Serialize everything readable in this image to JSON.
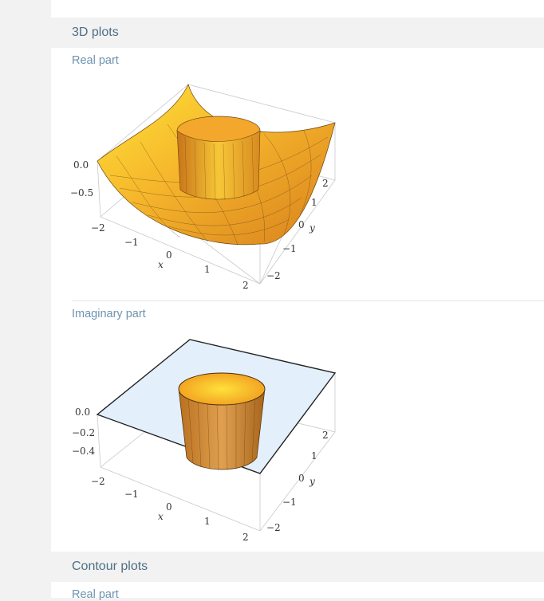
{
  "sections": {
    "plots3d": {
      "title": "3D plots"
    },
    "contour": {
      "title": "Contour plots"
    }
  },
  "plots": {
    "real": {
      "label": "Real part",
      "z_ticks": [
        "0.0",
        "−0.5"
      ],
      "x_ticks": [
        "−2",
        "−1",
        "0",
        "1",
        "2"
      ],
      "y_ticks": [
        "2",
        "1",
        "0",
        "−1",
        "−2"
      ],
      "x_axis": "x",
      "y_axis": "y"
    },
    "imag": {
      "label": "Imaginary part",
      "z_ticks": [
        "0.0",
        "−0.2",
        "−0.4"
      ],
      "x_ticks": [
        "−2",
        "−1",
        "0",
        "1",
        "2"
      ],
      "y_ticks": [
        "2",
        "1",
        "0",
        "−1",
        "−2"
      ],
      "x_axis": "x",
      "y_axis": "y"
    },
    "contour_real": {
      "label": "Real part"
    }
  },
  "colors": {
    "surface_orange": "#f2a12a",
    "surface_yellow": "#ffe437",
    "plane_blue": "#e3f0fb",
    "section_text": "#4f6f86",
    "label_text": "#6e93b0"
  }
}
